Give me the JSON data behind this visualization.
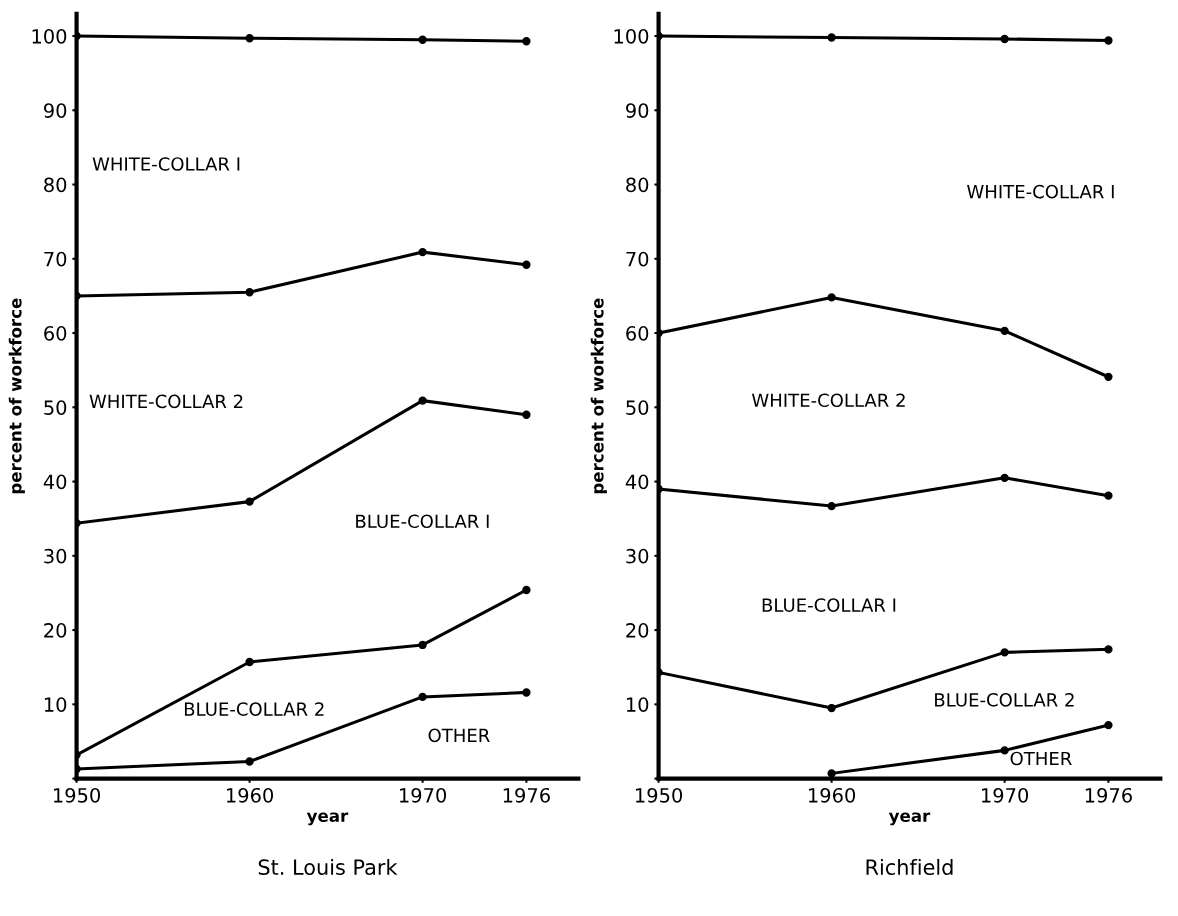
{
  "chart_data": [
    {
      "type": "line",
      "title": "St. Louis Park",
      "xlabel": "year",
      "ylabel": "percent of workforce",
      "x": [
        1950,
        1960,
        1970,
        1976
      ],
      "xlim": [
        1950,
        1979
      ],
      "xticks": [
        1950,
        1960,
        1970,
        1976
      ],
      "ylim": [
        0,
        103
      ],
      "yticks": [
        {
          "value": 0,
          "label": null
        },
        10,
        20,
        30,
        40,
        50,
        60,
        70,
        80,
        90,
        100
      ],
      "marker": "circle",
      "line_style": "solid",
      "grid": false,
      "legend": false,
      "series": [
        {
          "color": "#000000",
          "values": [
            100,
            99.7,
            99.5,
            99.3
          ]
        },
        {
          "color": "#000000",
          "values": [
            65.0,
            65.5,
            70.9,
            69.2
          ]
        },
        {
          "color": "#000000",
          "values": [
            34.4,
            37.3,
            50.9,
            49.0
          ]
        },
        {
          "color": "#000000",
          "values": [
            3.2,
            15.7,
            18.0,
            25.4
          ]
        },
        {
          "color": "#000000",
          "values": [
            1.3,
            2.3,
            11.0,
            11.6
          ]
        }
      ],
      "annotations": [
        "WHITE-COLLAR I",
        "WHITE-COLLAR 2",
        "BLUE-COLLAR I",
        "BLUE-COLLAR 2",
        "OTHER"
      ]
    },
    {
      "type": "line",
      "title": "Richfield",
      "xlabel": "year",
      "ylabel": "percent of workforce",
      "x": [
        1950,
        1960,
        1970,
        1976
      ],
      "xlim": [
        1950,
        1979
      ],
      "xticks": [
        1950,
        1960,
        1970,
        1976
      ],
      "ylim": [
        0,
        103
      ],
      "yticks": [
        {
          "value": 0,
          "label": null
        },
        10,
        20,
        30,
        40,
        50,
        60,
        70,
        80,
        90,
        100
      ],
      "marker": "circle",
      "line_style": "solid",
      "grid": false,
      "legend": false,
      "series": [
        {
          "color": "#000000",
          "values": [
            100,
            99.8,
            99.6,
            99.4
          ]
        },
        {
          "color": "#000000",
          "values": [
            60.0,
            64.8,
            60.3,
            54.1
          ]
        },
        {
          "color": "#000000",
          "values": [
            39.0,
            36.7,
            40.5,
            38.1
          ]
        },
        {
          "color": "#000000",
          "values": [
            14.3,
            9.5,
            17.0,
            17.4
          ]
        },
        {
          "color": "#000000",
          "values": [
            null,
            0.7,
            3.8,
            7.2
          ]
        }
      ],
      "annotations": [
        "WHITE-COLLAR I",
        "WHITE-COLLAR 2",
        "BLUE-COLLAR I",
        "BLUE-COLLAR 2",
        "OTHER"
      ]
    }
  ]
}
